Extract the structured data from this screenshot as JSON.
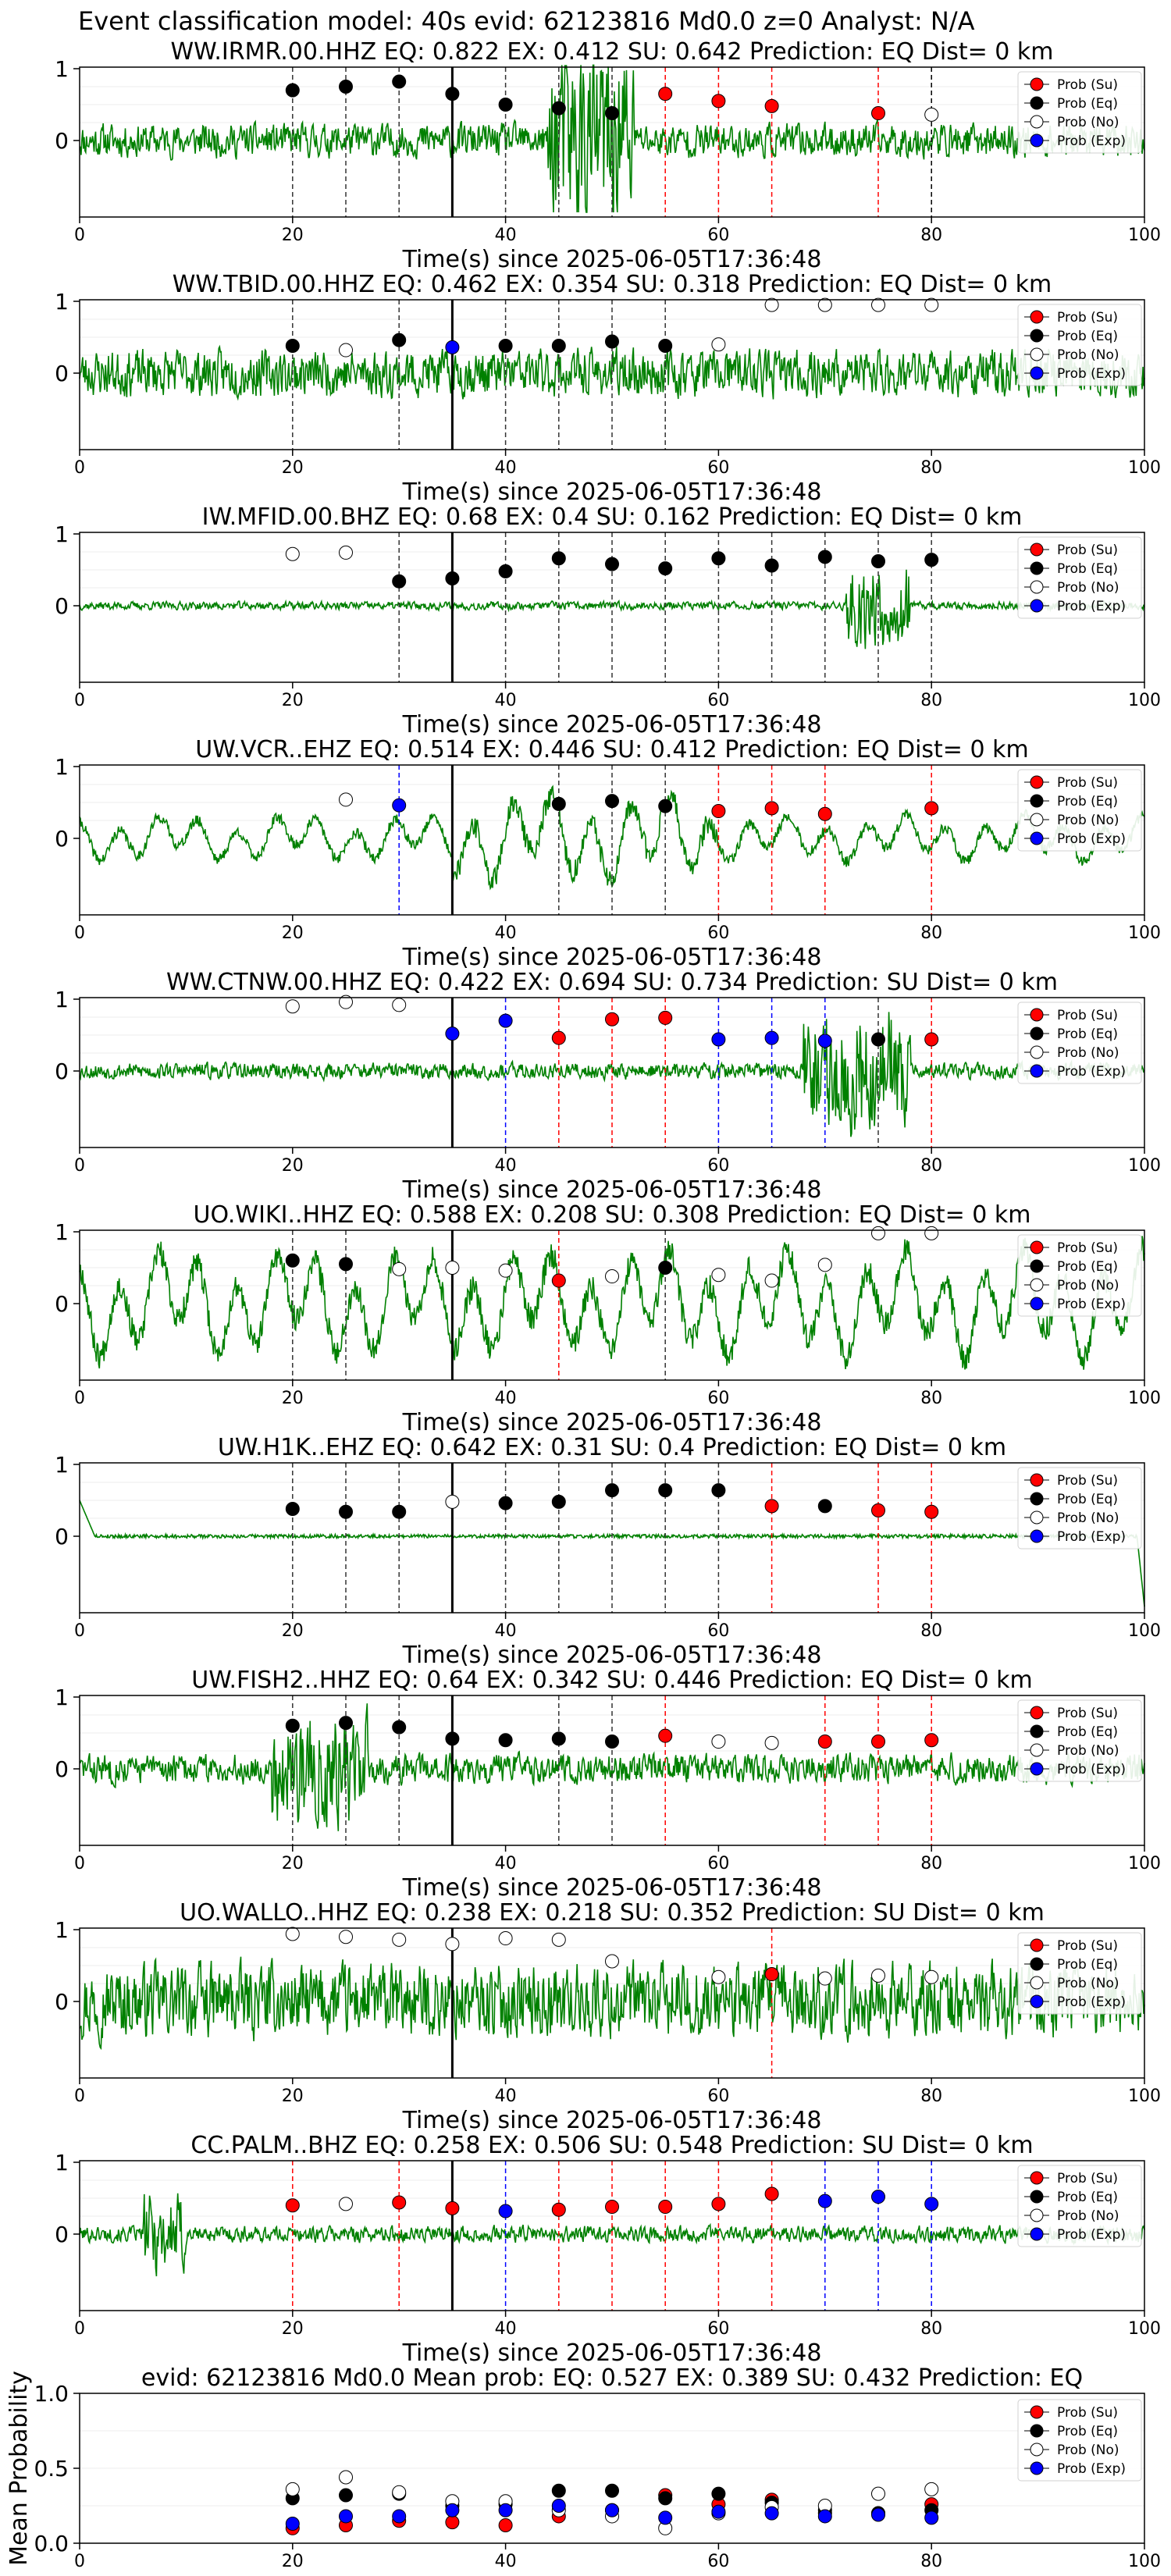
{
  "suptitle": "Event classification model: 40s evid: 62123816 Md0.0 z=0 Analyst: N/A",
  "legend": [
    "Prob (Su)",
    "Prob (Eq)",
    "Prob (No)",
    "Prob (Exp)"
  ],
  "colors": {
    "su": "#ff0000",
    "eq": "#000000",
    "no": "#ffffff",
    "exp": "#0000ff",
    "trace": "#008000"
  },
  "xlabel": "Time(s) since 2025-06-05T17:36:48",
  "chart_data": [
    {
      "type": "line",
      "title": "WW.IRMR.00.HHZ   EQ: 0.822  EX: 0.412  SU: 0.642   Prediction: EQ    Dist= 0 km",
      "xlim": [
        0,
        100
      ],
      "xticks": [
        "0",
        "20",
        "40",
        "60",
        "80",
        "100"
      ],
      "yticks": [
        "0",
        "1"
      ],
      "seed": 11,
      "amp": 0.25,
      "trace": "burst",
      "burst": [
        44,
        52
      ],
      "burstAmp": 1.2,
      "pred_times": [
        20,
        25,
        30,
        35,
        40,
        45,
        50,
        55,
        60,
        65,
        75,
        80
      ],
      "points": [
        {
          "x": 20,
          "y": 0.7,
          "c": "eq"
        },
        {
          "x": 25,
          "y": 0.75,
          "c": "eq"
        },
        {
          "x": 30,
          "y": 0.82,
          "c": "eq"
        },
        {
          "x": 35,
          "y": 0.65,
          "c": "eq"
        },
        {
          "x": 40,
          "y": 0.5,
          "c": "eq"
        },
        {
          "x": 45,
          "y": 0.45,
          "c": "eq"
        },
        {
          "x": 50,
          "y": 0.38,
          "c": "eq"
        },
        {
          "x": 55,
          "y": 0.65,
          "c": "su"
        },
        {
          "x": 60,
          "y": 0.55,
          "c": "su"
        },
        {
          "x": 65,
          "y": 0.48,
          "c": "su"
        },
        {
          "x": 75,
          "y": 0.38,
          "c": "su"
        },
        {
          "x": 80,
          "y": 0.36,
          "c": "no"
        }
      ]
    },
    {
      "type": "line",
      "title": "WW.TBID.00.HHZ   EQ: 0.462  EX: 0.354  SU: 0.318   Prediction: EQ    Dist= 0 km",
      "xlim": [
        0,
        100
      ],
      "xticks": [
        "0",
        "20",
        "40",
        "60",
        "80",
        "100"
      ],
      "yticks": [
        "0",
        "1"
      ],
      "seed": 23,
      "amp": 0.35,
      "trace": "noise",
      "burst": [
        0,
        100
      ],
      "burstAmp": 0.0,
      "pred_times": [
        20,
        30,
        35,
        40,
        45,
        50,
        55
      ],
      "points": [
        {
          "x": 20,
          "y": 0.38,
          "c": "eq"
        },
        {
          "x": 25,
          "y": 0.32,
          "c": "no"
        },
        {
          "x": 30,
          "y": 0.46,
          "c": "eq"
        },
        {
          "x": 35,
          "y": 0.36,
          "c": "exp"
        },
        {
          "x": 40,
          "y": 0.38,
          "c": "eq"
        },
        {
          "x": 45,
          "y": 0.38,
          "c": "eq"
        },
        {
          "x": 50,
          "y": 0.44,
          "c": "eq"
        },
        {
          "x": 55,
          "y": 0.38,
          "c": "eq"
        },
        {
          "x": 60,
          "y": 0.4,
          "c": "no"
        },
        {
          "x": 65,
          "y": 0.95,
          "c": "no"
        },
        {
          "x": 70,
          "y": 0.95,
          "c": "no"
        },
        {
          "x": 75,
          "y": 0.95,
          "c": "no"
        },
        {
          "x": 80,
          "y": 0.95,
          "c": "no"
        }
      ]
    },
    {
      "type": "line",
      "title": "IW.MFID.00.BHZ   EQ: 0.68  EX: 0.4  SU: 0.162   Prediction: EQ    Dist= 0 km",
      "xlim": [
        0,
        100
      ],
      "xticks": [
        "0",
        "20",
        "40",
        "60",
        "80",
        "100"
      ],
      "yticks": [
        "0",
        "1"
      ],
      "seed": 37,
      "amp": 0.06,
      "trace": "burst",
      "burst": [
        72,
        78
      ],
      "burstAmp": 0.6,
      "pred_times": [
        30,
        35,
        40,
        45,
        50,
        55,
        60,
        65,
        70,
        75,
        80
      ],
      "points": [
        {
          "x": 20,
          "y": 0.72,
          "c": "no"
        },
        {
          "x": 25,
          "y": 0.74,
          "c": "no"
        },
        {
          "x": 30,
          "y": 0.34,
          "c": "eq"
        },
        {
          "x": 35,
          "y": 0.38,
          "c": "eq"
        },
        {
          "x": 40,
          "y": 0.48,
          "c": "eq"
        },
        {
          "x": 45,
          "y": 0.66,
          "c": "eq"
        },
        {
          "x": 50,
          "y": 0.58,
          "c": "eq"
        },
        {
          "x": 55,
          "y": 0.52,
          "c": "eq"
        },
        {
          "x": 60,
          "y": 0.66,
          "c": "eq"
        },
        {
          "x": 65,
          "y": 0.56,
          "c": "eq"
        },
        {
          "x": 70,
          "y": 0.68,
          "c": "eq"
        },
        {
          "x": 75,
          "y": 0.62,
          "c": "eq"
        },
        {
          "x": 80,
          "y": 0.64,
          "c": "eq"
        }
      ]
    },
    {
      "type": "line",
      "title": "UW.VCR..EHZ   EQ: 0.514  EX: 0.446  SU: 0.412   Prediction: EQ    Dist= 0 km",
      "xlim": [
        0,
        100
      ],
      "xticks": [
        "0",
        "20",
        "40",
        "60",
        "80",
        "100"
      ],
      "yticks": [
        "0",
        "1"
      ],
      "seed": 41,
      "amp": 0.3,
      "trace": "wavy",
      "burst": [
        35,
        60
      ],
      "burstAmp": 0.3,
      "pred_times": [
        30,
        45,
        50,
        55,
        60,
        65,
        70,
        80
      ],
      "points": [
        {
          "x": 25,
          "y": 0.54,
          "c": "no"
        },
        {
          "x": 30,
          "y": 0.46,
          "c": "exp"
        },
        {
          "x": 45,
          "y": 0.48,
          "c": "eq"
        },
        {
          "x": 50,
          "y": 0.52,
          "c": "eq"
        },
        {
          "x": 55,
          "y": 0.45,
          "c": "eq"
        },
        {
          "x": 60,
          "y": 0.38,
          "c": "su"
        },
        {
          "x": 65,
          "y": 0.42,
          "c": "su"
        },
        {
          "x": 70,
          "y": 0.34,
          "c": "su"
        },
        {
          "x": 80,
          "y": 0.42,
          "c": "su"
        }
      ]
    },
    {
      "type": "line",
      "title": "WW.CTNW.00.HHZ   EQ: 0.422  EX: 0.694  SU: 0.734   Prediction: SU    Dist= 0 km",
      "xlim": [
        0,
        100
      ],
      "xticks": [
        "0",
        "20",
        "40",
        "60",
        "80",
        "100"
      ],
      "yticks": [
        "0",
        "1"
      ],
      "seed": 53,
      "amp": 0.12,
      "trace": "burst",
      "burst": [
        68,
        78
      ],
      "burstAmp": 0.9,
      "pred_times": [
        40,
        45,
        50,
        55,
        60,
        65,
        70,
        75,
        80
      ],
      "points": [
        {
          "x": 20,
          "y": 0.9,
          "c": "no"
        },
        {
          "x": 25,
          "y": 0.96,
          "c": "no"
        },
        {
          "x": 30,
          "y": 0.92,
          "c": "no"
        },
        {
          "x": 35,
          "y": 0.52,
          "c": "exp"
        },
        {
          "x": 40,
          "y": 0.7,
          "c": "exp"
        },
        {
          "x": 45,
          "y": 0.46,
          "c": "su"
        },
        {
          "x": 50,
          "y": 0.72,
          "c": "su"
        },
        {
          "x": 55,
          "y": 0.74,
          "c": "su"
        },
        {
          "x": 60,
          "y": 0.44,
          "c": "exp"
        },
        {
          "x": 65,
          "y": 0.46,
          "c": "exp"
        },
        {
          "x": 70,
          "y": 0.42,
          "c": "exp"
        },
        {
          "x": 75,
          "y": 0.44,
          "c": "eq"
        },
        {
          "x": 80,
          "y": 0.44,
          "c": "su"
        }
      ]
    },
    {
      "type": "line",
      "title": "UO.WIKI..HHZ   EQ: 0.588  EX: 0.208  SU: 0.308   Prediction: EQ    Dist= 0 km",
      "xlim": [
        0,
        100
      ],
      "xticks": [
        "0",
        "20",
        "40",
        "60",
        "80",
        "100"
      ],
      "yticks": [
        "0",
        "1"
      ],
      "seed": 67,
      "amp": 0.7,
      "trace": "wavy",
      "burst": [
        0,
        100
      ],
      "burstAmp": 0.0,
      "pred_times": [
        20,
        25,
        45,
        55
      ],
      "points": [
        {
          "x": 20,
          "y": 0.6,
          "c": "eq"
        },
        {
          "x": 25,
          "y": 0.55,
          "c": "eq"
        },
        {
          "x": 30,
          "y": 0.48,
          "c": "no"
        },
        {
          "x": 35,
          "y": 0.5,
          "c": "no"
        },
        {
          "x": 40,
          "y": 0.46,
          "c": "no"
        },
        {
          "x": 45,
          "y": 0.32,
          "c": "su"
        },
        {
          "x": 50,
          "y": 0.38,
          "c": "no"
        },
        {
          "x": 55,
          "y": 0.5,
          "c": "eq"
        },
        {
          "x": 60,
          "y": 0.4,
          "c": "no"
        },
        {
          "x": 65,
          "y": 0.32,
          "c": "no"
        },
        {
          "x": 70,
          "y": 0.54,
          "c": "no"
        },
        {
          "x": 75,
          "y": 0.98,
          "c": "no"
        },
        {
          "x": 80,
          "y": 0.98,
          "c": "no"
        }
      ]
    },
    {
      "type": "line",
      "title": "UW.H1K..EHZ   EQ: 0.642  EX: 0.31  SU: 0.4   Prediction: EQ    Dist= 0 km",
      "xlim": [
        0,
        100
      ],
      "xticks": [
        "0",
        "20",
        "40",
        "60",
        "80",
        "100"
      ],
      "yticks": [
        "0",
        "1"
      ],
      "seed": 79,
      "amp": 0.05,
      "trace": "spike",
      "burst": [
        0,
        100
      ],
      "burstAmp": 0.0,
      "pred_times": [
        20,
        25,
        30,
        40,
        45,
        50,
        55,
        60,
        65,
        75,
        80
      ],
      "points": [
        {
          "x": 20,
          "y": 0.38,
          "c": "eq"
        },
        {
          "x": 25,
          "y": 0.34,
          "c": "eq"
        },
        {
          "x": 30,
          "y": 0.34,
          "c": "eq"
        },
        {
          "x": 35,
          "y": 0.48,
          "c": "no"
        },
        {
          "x": 40,
          "y": 0.46,
          "c": "eq"
        },
        {
          "x": 45,
          "y": 0.48,
          "c": "eq"
        },
        {
          "x": 50,
          "y": 0.64,
          "c": "eq"
        },
        {
          "x": 55,
          "y": 0.64,
          "c": "eq"
        },
        {
          "x": 60,
          "y": 0.64,
          "c": "eq"
        },
        {
          "x": 65,
          "y": 0.42,
          "c": "su"
        },
        {
          "x": 70,
          "y": 0.42,
          "c": "eq"
        },
        {
          "x": 75,
          "y": 0.36,
          "c": "su"
        },
        {
          "x": 80,
          "y": 0.34,
          "c": "su"
        }
      ]
    },
    {
      "type": "line",
      "title": "UW.FISH2..HHZ   EQ: 0.64  EX: 0.342  SU: 0.446   Prediction: EQ    Dist= 0 km",
      "xlim": [
        0,
        100
      ],
      "xticks": [
        "0",
        "20",
        "40",
        "60",
        "80",
        "100"
      ],
      "yticks": [
        "0",
        "1"
      ],
      "seed": 83,
      "amp": 0.22,
      "trace": "burst",
      "burst": [
        18,
        27
      ],
      "burstAmp": 0.6,
      "pred_times": [
        20,
        25,
        30,
        45,
        50,
        55,
        70,
        75,
        80
      ],
      "points": [
        {
          "x": 20,
          "y": 0.6,
          "c": "eq"
        },
        {
          "x": 25,
          "y": 0.64,
          "c": "eq"
        },
        {
          "x": 30,
          "y": 0.58,
          "c": "eq"
        },
        {
          "x": 35,
          "y": 0.42,
          "c": "eq"
        },
        {
          "x": 40,
          "y": 0.4,
          "c": "eq"
        },
        {
          "x": 45,
          "y": 0.42,
          "c": "eq"
        },
        {
          "x": 50,
          "y": 0.38,
          "c": "eq"
        },
        {
          "x": 55,
          "y": 0.46,
          "c": "su"
        },
        {
          "x": 60,
          "y": 0.38,
          "c": "no"
        },
        {
          "x": 65,
          "y": 0.36,
          "c": "no"
        },
        {
          "x": 70,
          "y": 0.38,
          "c": "su"
        },
        {
          "x": 75,
          "y": 0.38,
          "c": "su"
        },
        {
          "x": 80,
          "y": 0.4,
          "c": "su"
        }
      ]
    },
    {
      "type": "line",
      "title": "UO.WALLO..HHZ   EQ: 0.238  EX: 0.218  SU: 0.352   Prediction: SU    Dist= 0 km",
      "xlim": [
        0,
        100
      ],
      "xticks": [
        "0",
        "20",
        "40",
        "60",
        "80",
        "100"
      ],
      "yticks": [
        "0",
        "1"
      ],
      "seed": 97,
      "amp": 0.55,
      "trace": "noise",
      "burst": [
        0,
        100
      ],
      "burstAmp": 0.0,
      "pred_times": [
        65
      ],
      "points": [
        {
          "x": 20,
          "y": 0.94,
          "c": "no"
        },
        {
          "x": 25,
          "y": 0.9,
          "c": "no"
        },
        {
          "x": 30,
          "y": 0.86,
          "c": "no"
        },
        {
          "x": 35,
          "y": 0.8,
          "c": "no"
        },
        {
          "x": 40,
          "y": 0.88,
          "c": "no"
        },
        {
          "x": 45,
          "y": 0.86,
          "c": "no"
        },
        {
          "x": 50,
          "y": 0.56,
          "c": "no"
        },
        {
          "x": 60,
          "y": 0.34,
          "c": "no"
        },
        {
          "x": 65,
          "y": 0.38,
          "c": "su"
        },
        {
          "x": 70,
          "y": 0.32,
          "c": "no"
        },
        {
          "x": 75,
          "y": 0.36,
          "c": "no"
        },
        {
          "x": 80,
          "y": 0.34,
          "c": "no"
        }
      ]
    },
    {
      "type": "line",
      "title": "CC.PALM..BHZ   EQ: 0.258  EX: 0.506  SU: 0.548   Prediction: SU    Dist= 0 km",
      "xlim": [
        0,
        100
      ],
      "xticks": [
        "0",
        "20",
        "40",
        "60",
        "80",
        "100"
      ],
      "yticks": [
        "0",
        "1"
      ],
      "seed": 101,
      "amp": 0.12,
      "trace": "burst",
      "burst": [
        6,
        10
      ],
      "burstAmp": 0.5,
      "pred_times": [
        20,
        30,
        40,
        45,
        50,
        55,
        60,
        65,
        70,
        75,
        80
      ],
      "points": [
        {
          "x": 20,
          "y": 0.4,
          "c": "su"
        },
        {
          "x": 25,
          "y": 0.42,
          "c": "no"
        },
        {
          "x": 30,
          "y": 0.44,
          "c": "su"
        },
        {
          "x": 35,
          "y": 0.36,
          "c": "su"
        },
        {
          "x": 40,
          "y": 0.32,
          "c": "exp"
        },
        {
          "x": 45,
          "y": 0.34,
          "c": "su"
        },
        {
          "x": 50,
          "y": 0.38,
          "c": "su"
        },
        {
          "x": 55,
          "y": 0.38,
          "c": "su"
        },
        {
          "x": 60,
          "y": 0.42,
          "c": "su"
        },
        {
          "x": 65,
          "y": 0.56,
          "c": "su"
        },
        {
          "x": 70,
          "y": 0.46,
          "c": "exp"
        },
        {
          "x": 75,
          "y": 0.52,
          "c": "exp"
        },
        {
          "x": 80,
          "y": 0.42,
          "c": "exp"
        }
      ]
    },
    {
      "type": "scatter",
      "title": "evid: 62123816  Md0.0   Mean prob:   EQ: 0.527  EX: 0.389  SU: 0.432   Prediction: EQ",
      "ylabel": "Mean Probability",
      "xlim": [
        0,
        100
      ],
      "ylim": [
        0,
        1
      ],
      "xticks": [
        "0",
        "20",
        "40",
        "60",
        "80",
        "100"
      ],
      "yticks": [
        "0.0",
        "0.5",
        "1.0"
      ],
      "series": [
        {
          "name": "Prob (Su)",
          "c": "su",
          "x": [
            20,
            25,
            30,
            35,
            40,
            45,
            50,
            55,
            60,
            65,
            70,
            75,
            80
          ],
          "values": [
            0.1,
            0.12,
            0.15,
            0.14,
            0.12,
            0.18,
            0.22,
            0.32,
            0.26,
            0.29,
            0.2,
            0.2,
            0.26
          ]
        },
        {
          "name": "Prob (Eq)",
          "c": "eq",
          "x": [
            20,
            25,
            30,
            35,
            40,
            45,
            50,
            55,
            60,
            65,
            70,
            75,
            80
          ],
          "values": [
            0.3,
            0.32,
            0.33,
            0.25,
            0.26,
            0.35,
            0.35,
            0.3,
            0.33,
            0.27,
            0.22,
            0.2,
            0.22
          ]
        },
        {
          "name": "Prob (No)",
          "c": "no",
          "x": [
            20,
            25,
            30,
            35,
            40,
            45,
            50,
            55,
            60,
            65,
            70,
            75,
            80
          ],
          "values": [
            0.36,
            0.44,
            0.34,
            0.28,
            0.28,
            0.22,
            0.18,
            0.1,
            0.2,
            0.24,
            0.25,
            0.33,
            0.36
          ]
        },
        {
          "name": "Prob (Exp)",
          "c": "exp",
          "x": [
            20,
            25,
            30,
            35,
            40,
            45,
            50,
            55,
            60,
            65,
            70,
            75,
            80
          ],
          "values": [
            0.13,
            0.18,
            0.18,
            0.22,
            0.22,
            0.25,
            0.22,
            0.17,
            0.21,
            0.2,
            0.18,
            0.19,
            0.17
          ]
        }
      ]
    }
  ]
}
